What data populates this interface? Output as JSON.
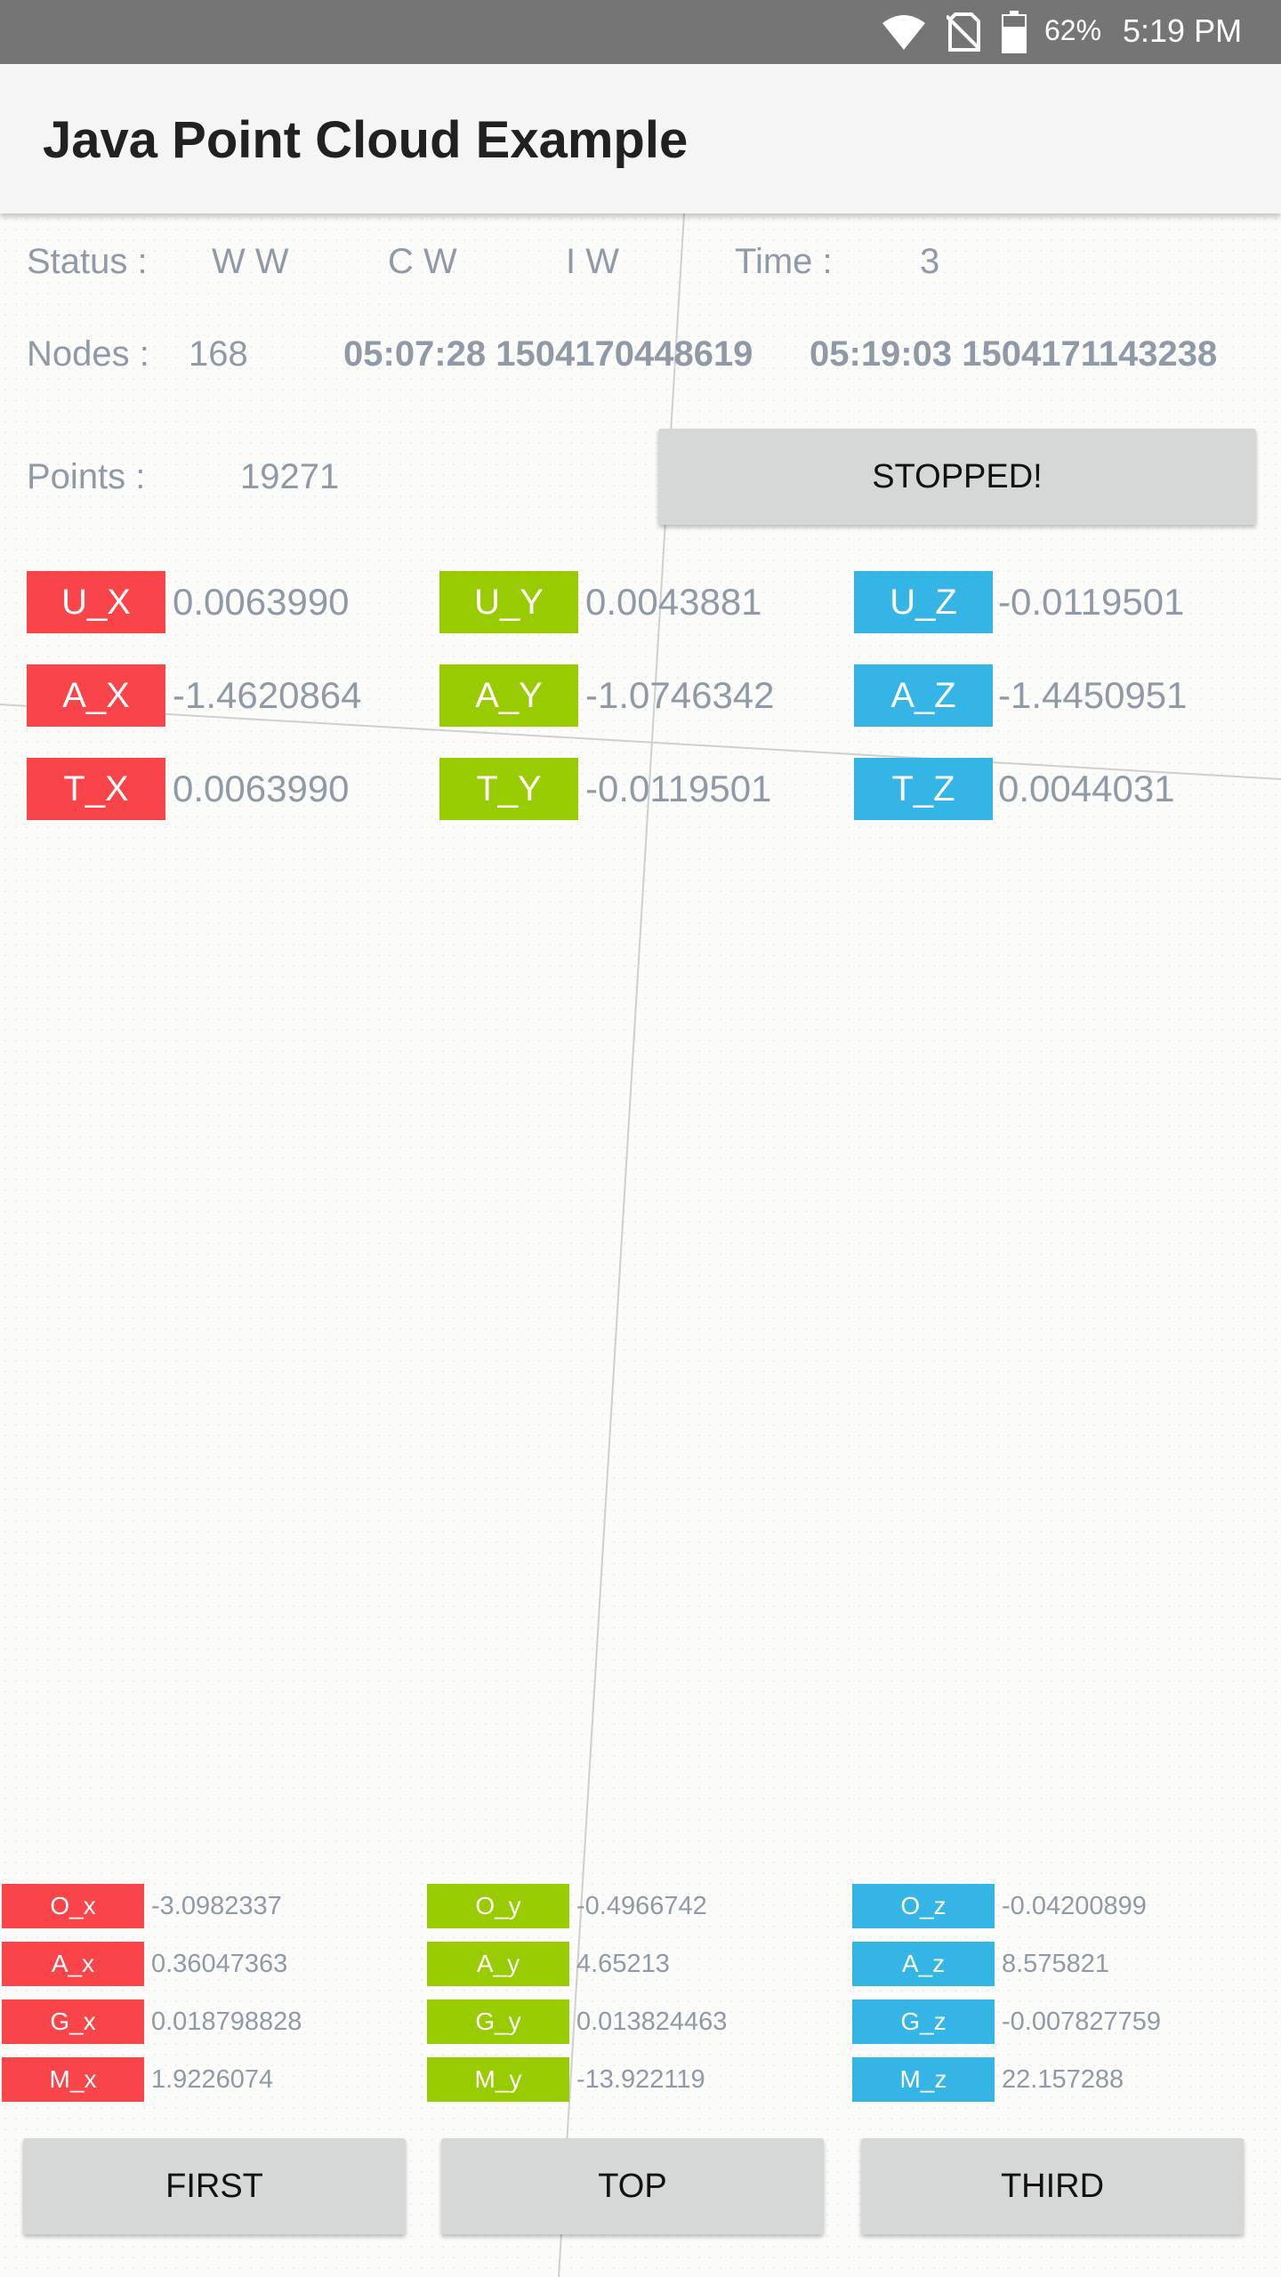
{
  "status_bar": {
    "battery": "62%",
    "time": "5:19 PM"
  },
  "app": {
    "title": "Java Point Cloud Example"
  },
  "info": {
    "status_label": "Status :",
    "status_ww": "W W",
    "status_cw": "C W",
    "status_iw": "I W",
    "time_label": "Time :",
    "time_value": "3",
    "nodes_label": "Nodes :",
    "nodes_value": "168",
    "timestamp_start": "05:07:28 1504170448619",
    "timestamp_end": "05:19:03 1504171143238",
    "points_label": "Points :",
    "points_value": "19271",
    "stopped_button": "STOPPED!"
  },
  "colors": {
    "x": "#f94449",
    "y": "#98cb00",
    "z": "#34b5e5"
  },
  "pose": {
    "u_x": {
      "label": "U_X",
      "value": "0.0063990"
    },
    "u_y": {
      "label": "U_Y",
      "value": "0.0043881"
    },
    "u_z": {
      "label": "U_Z",
      "value": "-0.0119501"
    },
    "a_x": {
      "label": "A_X",
      "value": "-1.4620864"
    },
    "a_y": {
      "label": "A_Y",
      "value": "-1.0746342"
    },
    "a_z": {
      "label": "A_Z",
      "value": "-1.4450951"
    },
    "t_x": {
      "label": "T_X",
      "value": "0.0063990"
    },
    "t_y": {
      "label": "T_Y",
      "value": "-0.0119501"
    },
    "t_z": {
      "label": "T_Z",
      "value": "0.0044031"
    }
  },
  "sensors": {
    "o_x": {
      "label": "O_x",
      "value": "-3.0982337"
    },
    "o_y": {
      "label": "O_y",
      "value": "-0.4966742"
    },
    "o_z": {
      "label": "O_z",
      "value": "-0.04200899"
    },
    "a_x": {
      "label": "A_x",
      "value": "0.36047363"
    },
    "a_y": {
      "label": "A_y",
      "value": "4.65213"
    },
    "a_z": {
      "label": "A_z",
      "value": "8.575821"
    },
    "g_x": {
      "label": "G_x",
      "value": "0.018798828"
    },
    "g_y": {
      "label": "G_y",
      "value": "0.013824463"
    },
    "g_z": {
      "label": "G_z",
      "value": "-0.007827759"
    },
    "m_x": {
      "label": "M_x",
      "value": "1.9226074"
    },
    "m_y": {
      "label": "M_y",
      "value": "-13.922119"
    },
    "m_z": {
      "label": "M_z",
      "value": "22.157288"
    }
  },
  "camera_buttons": {
    "first": "FIRST",
    "top": "TOP",
    "third": "THIRD"
  }
}
